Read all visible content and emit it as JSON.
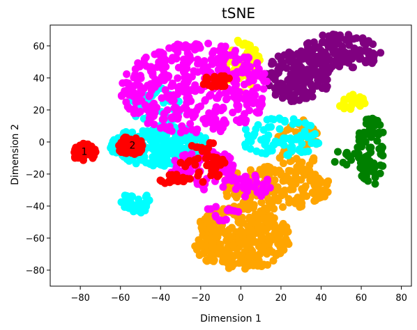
{
  "chart_data": {
    "type": "scatter",
    "title": "tSNE",
    "xlabel": "Dimension 1",
    "ylabel": "Dimension 2",
    "xlim": [
      -95,
      85
    ],
    "ylim": [
      -90,
      73
    ],
    "xticks": [
      -80,
      -60,
      -40,
      -20,
      0,
      20,
      40,
      60,
      80
    ],
    "yticks": [
      -80,
      -60,
      -40,
      -20,
      0,
      20,
      40,
      60
    ],
    "grid": false,
    "annotations": [
      {
        "text": "1",
        "x": -78,
        "y": -6
      },
      {
        "text": "2",
        "x": -54,
        "y": -2
      }
    ],
    "series": [
      {
        "color": "#008000",
        "clusters": [
          {
            "x": [
              58,
              72
            ],
            "y": [
              -27,
              17
            ],
            "n": 80
          },
          {
            "x": [
              46,
              58
            ],
            "y": [
              -15,
              -5
            ],
            "n": 10
          }
        ]
      },
      {
        "color": "#800080",
        "clusters": [
          {
            "x": [
              12,
              45
            ],
            "y": [
              25,
              57
            ],
            "n": 140
          },
          {
            "x": [
              30,
              70
            ],
            "y": [
              45,
              68
            ],
            "n": 140
          }
        ]
      },
      {
        "color": "#ffff00",
        "clusters": [
          {
            "x": [
              -8,
              10
            ],
            "y": [
              30,
              65
            ],
            "n": 60
          },
          {
            "x": [
              48,
              62
            ],
            "y": [
              20,
              30
            ],
            "n": 25
          }
        ]
      },
      {
        "color": "#ffa500",
        "clusters": [
          {
            "x": [
              -25,
              25
            ],
            "y": [
              -80,
              -40
            ],
            "n": 320
          },
          {
            "x": [
              -10,
              45
            ],
            "y": [
              -42,
              -15
            ],
            "n": 180
          },
          {
            "x": [
              18,
              40
            ],
            "y": [
              -20,
              15
            ],
            "n": 50
          }
        ]
      },
      {
        "color": "#00ffff",
        "clusters": [
          {
            "x": [
              -65,
              -15
            ],
            "y": [
              -15,
              10
            ],
            "n": 220
          },
          {
            "x": [
              -60,
              -45
            ],
            "y": [
              -45,
              -30
            ],
            "n": 40
          },
          {
            "x": [
              -55,
              -30
            ],
            "y": [
              10,
              35
            ],
            "n": 50
          },
          {
            "x": [
              0,
              40
            ],
            "y": [
              -10,
              15
            ],
            "n": 80
          }
        ]
      },
      {
        "color": "#ff00ff",
        "clusters": [
          {
            "x": [
              -60,
              15
            ],
            "y": [
              5,
              62
            ],
            "n": 400
          },
          {
            "x": [
              -35,
              0
            ],
            "y": [
              -30,
              -5
            ],
            "n": 60
          },
          {
            "x": [
              -5,
              15
            ],
            "y": [
              -35,
              -20
            ],
            "n": 30
          },
          {
            "x": [
              -20,
              0
            ],
            "y": [
              -50,
              -40
            ],
            "n": 15
          }
        ]
      },
      {
        "color": "#ff0000",
        "clusters": [
          {
            "x": [
              -84,
              -72
            ],
            "y": [
              -12,
              -1
            ],
            "n": 60
          },
          {
            "x": [
              -62,
              -48
            ],
            "y": [
              -8,
              4
            ],
            "n": 50
          },
          {
            "x": [
              -20,
              -5
            ],
            "y": [
              34,
              42
            ],
            "n": 25
          },
          {
            "x": [
              -30,
              -5
            ],
            "y": [
              -25,
              0
            ],
            "n": 40
          },
          {
            "x": [
              -45,
              -25
            ],
            "y": [
              -26,
              -20
            ],
            "n": 20
          }
        ]
      }
    ]
  }
}
